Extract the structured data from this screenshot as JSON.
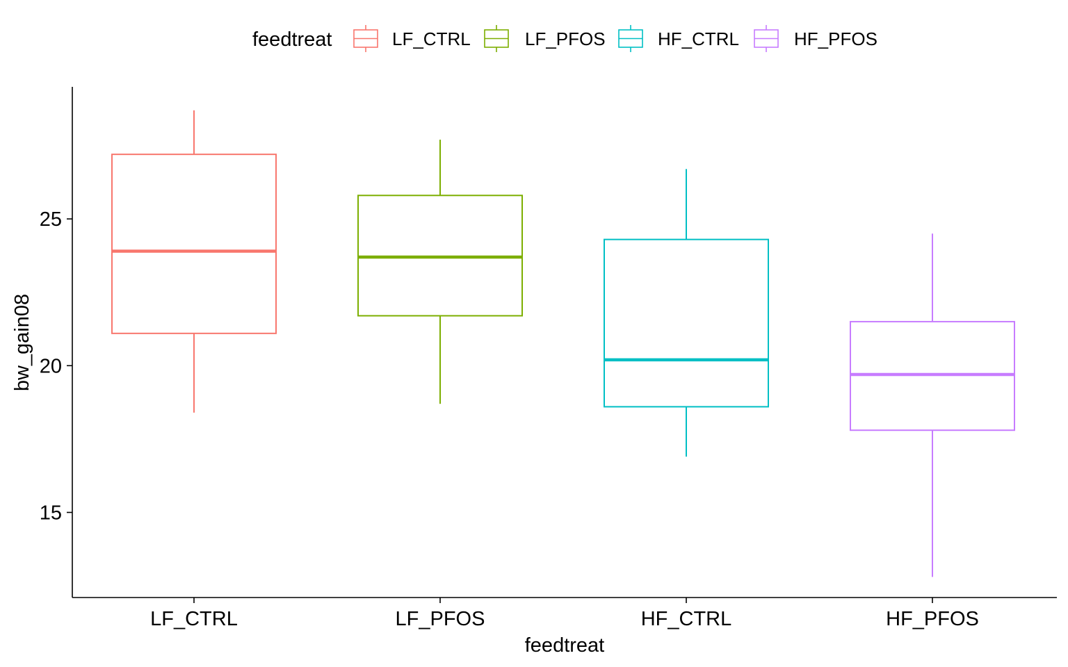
{
  "chart_data": {
    "type": "boxplot",
    "xlabel": "feedtreat",
    "ylabel": "bw_gain08",
    "ylim": [
      12.1,
      29.5
    ],
    "yticks": [
      15,
      20,
      25
    ],
    "grid": false,
    "legend": {
      "title": "feedtreat",
      "position": "top",
      "entries": [
        "LF_CTRL",
        "LF_PFOS",
        "HF_CTRL",
        "HF_PFOS"
      ]
    },
    "categories": [
      "LF_CTRL",
      "LF_PFOS",
      "HF_CTRL",
      "HF_PFOS"
    ],
    "series": [
      {
        "name": "LF_CTRL",
        "color": "#F8766D",
        "whisker_low": 18.4,
        "q1": 21.1,
        "median": 23.9,
        "q3": 27.2,
        "whisker_high": 28.7
      },
      {
        "name": "LF_PFOS",
        "color": "#7CAE00",
        "whisker_low": 18.7,
        "q1": 21.7,
        "median": 23.7,
        "q3": 25.8,
        "whisker_high": 27.7
      },
      {
        "name": "HF_CTRL",
        "color": "#00BFC4",
        "whisker_low": 16.9,
        "q1": 18.6,
        "median": 20.2,
        "q3": 24.3,
        "whisker_high": 26.7
      },
      {
        "name": "HF_PFOS",
        "color": "#C77CFF",
        "whisker_low": 12.8,
        "q1": 17.8,
        "median": 19.7,
        "q3": 21.5,
        "whisker_high": 24.5
      }
    ]
  }
}
